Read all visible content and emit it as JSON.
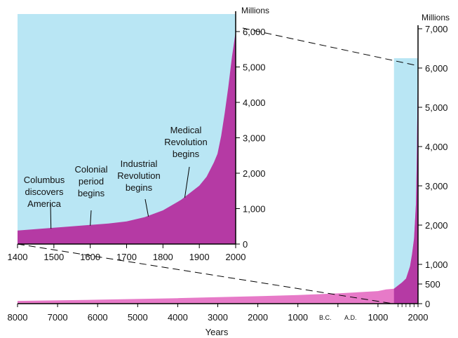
{
  "colors": {
    "sky": "#b9e6f4",
    "population_fill": "#b53aa4",
    "population_fill_light": "#e77ac8",
    "axis": "#000000"
  },
  "chart_data": [
    {
      "id": "inset",
      "type": "area",
      "title": "",
      "xlabel": "",
      "ylabel": "Millions",
      "xlim": [
        1400,
        2000
      ],
      "ylim": [
        0,
        6000
      ],
      "x_ticks": [
        "1400",
        "1500",
        "1600",
        "1700",
        "1800",
        "1900",
        "2000"
      ],
      "y_ticks": [
        "0",
        "1,000",
        "2,000",
        "3,000",
        "4,000",
        "5,000",
        "6,000"
      ],
      "x": [
        1400,
        1450,
        1500,
        1550,
        1600,
        1650,
        1700,
        1750,
        1800,
        1850,
        1900,
        1920,
        1940,
        1950,
        1960,
        1970,
        1980,
        1990,
        2000
      ],
      "values": [
        380,
        420,
        460,
        500,
        540,
        580,
        640,
        760,
        950,
        1250,
        1650,
        1900,
        2300,
        2550,
        3050,
        3700,
        4450,
        5300,
        6000
      ],
      "annotations": [
        {
          "text": [
            "Columbus",
            "discovers",
            "America"
          ],
          "x": 1492
        },
        {
          "text": [
            "Colonial",
            "period",
            "begins"
          ],
          "x": 1600
        },
        {
          "text": [
            "Industrial",
            "Revolution",
            "begins"
          ],
          "x": 1760
        },
        {
          "text": [
            "Medical",
            "Revolution",
            "begins"
          ],
          "x": 1860
        }
      ]
    },
    {
      "id": "main",
      "type": "area",
      "title": "",
      "xlabel": "Years",
      "ylabel": "Millions",
      "xlim": [
        -8000,
        2000
      ],
      "ylim": [
        0,
        7000
      ],
      "x_ticks": [
        "8000",
        "7000",
        "6000",
        "5000",
        "4000",
        "3000",
        "2000",
        "1000",
        "B.C.",
        "A.D.",
        "1000",
        "2000"
      ],
      "y_ticks": [
        "0",
        "500",
        "1,000",
        "2,000",
        "3,000",
        "4,000",
        "5,000",
        "6,000",
        "7,000"
      ],
      "x": [
        -8000,
        -6000,
        -4000,
        -2000,
        -1000,
        0,
        500,
        1000,
        1200,
        1400,
        1500,
        1600,
        1700,
        1800,
        1850,
        1900,
        1950,
        1970,
        1990,
        2000
      ],
      "values": [
        70,
        100,
        140,
        190,
        220,
        260,
        290,
        320,
        360,
        380,
        460,
        540,
        640,
        950,
        1250,
        1650,
        2550,
        3700,
        5300,
        6000
      ]
    }
  ]
}
